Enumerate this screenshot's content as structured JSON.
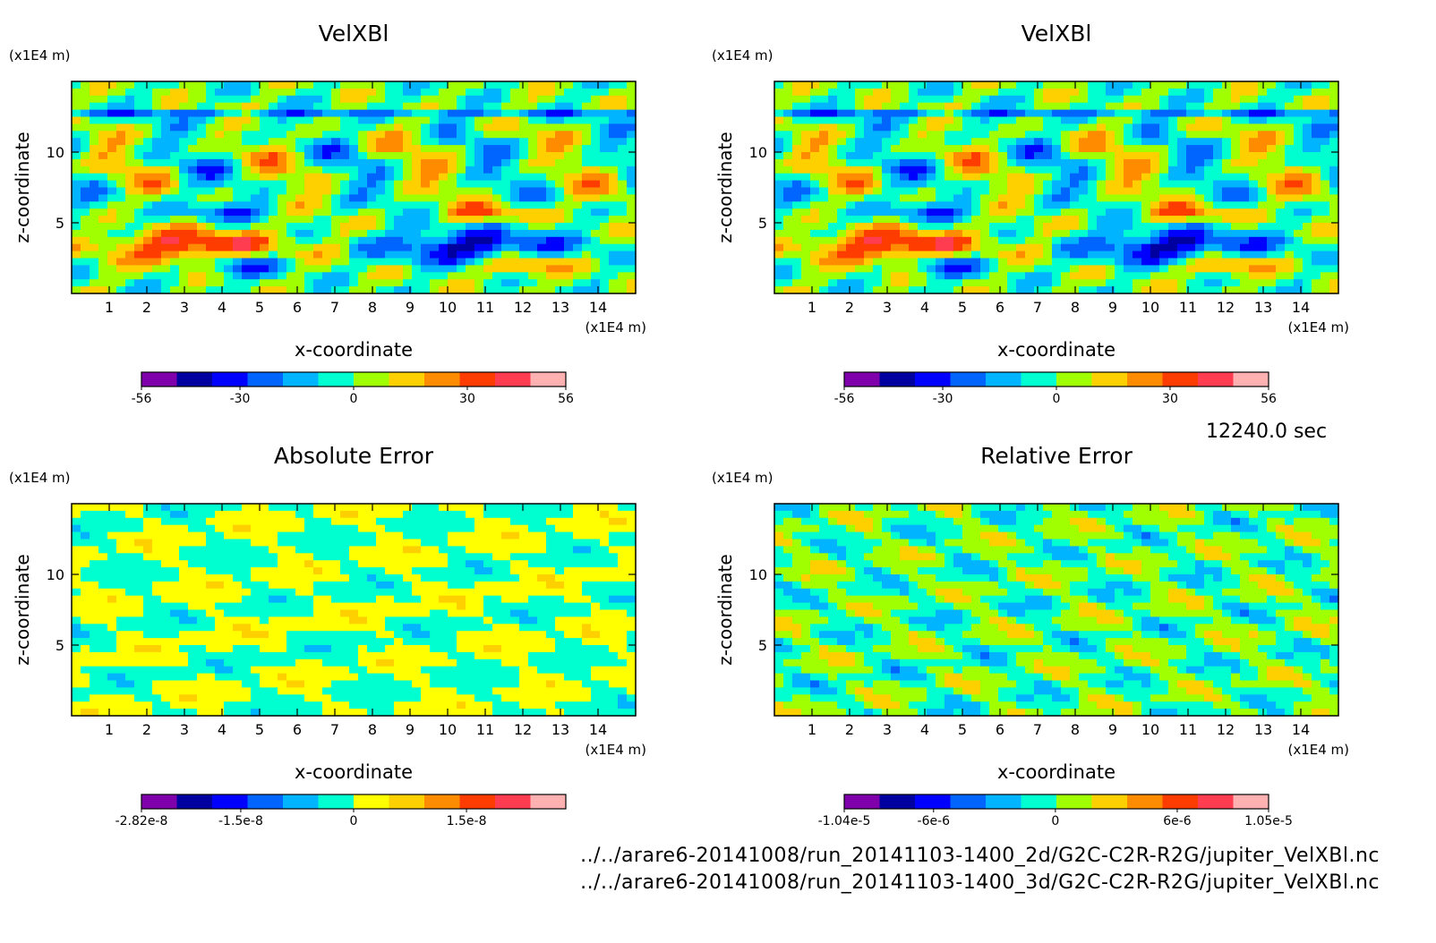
{
  "timestamp": "12240.0 sec",
  "files": [
    "../../arare6-20141008/run_20141103-1400_2d/G2C-C2R-R2G/jupiter_VelXBl.nc",
    "../../arare6-20141008/run_20141103-1400_3d/G2C-C2R-R2G/jupiter_VelXBl.nc"
  ],
  "chart_data": [
    {
      "type": "heatmap",
      "title": "VelXBl",
      "xlabel": "x-coordinate",
      "ylabel": "z-coordinate",
      "x_unit": "(x1E4 m)",
      "y_unit": "(x1E4 m)",
      "xlim": [
        0,
        15
      ],
      "ylim": [
        0,
        15
      ],
      "x_ticks": [
        1,
        2,
        3,
        4,
        5,
        6,
        7,
        8,
        9,
        10,
        11,
        12,
        13,
        14
      ],
      "y_ticks": [
        5,
        10
      ],
      "colorbar": {
        "ticks": [
          "-56",
          "-30",
          "0",
          "30",
          "56"
        ],
        "tick_values": [
          -56,
          -30,
          0,
          30,
          56
        ],
        "range": [
          -56,
          56
        ],
        "colors": [
          "#7f00aa",
          "#0000a0",
          "#0000ff",
          "#0064ff",
          "#00b4ff",
          "#00ffd0",
          "#a0ff00",
          "#ffd000",
          "#ff8c00",
          "#ff3c00",
          "#ff3c50",
          "#ffb0b0"
        ]
      }
    },
    {
      "type": "heatmap",
      "title": "VelXBl",
      "xlabel": "x-coordinate",
      "ylabel": "z-coordinate",
      "x_unit": "(x1E4 m)",
      "y_unit": "(x1E4 m)",
      "xlim": [
        0,
        15
      ],
      "ylim": [
        0,
        15
      ],
      "x_ticks": [
        1,
        2,
        3,
        4,
        5,
        6,
        7,
        8,
        9,
        10,
        11,
        12,
        13,
        14
      ],
      "y_ticks": [
        5,
        10
      ],
      "colorbar": {
        "ticks": [
          "-56",
          "-30",
          "0",
          "30",
          "56"
        ],
        "tick_values": [
          -56,
          -30,
          0,
          30,
          56
        ],
        "range": [
          -56,
          56
        ],
        "colors": [
          "#7f00aa",
          "#0000a0",
          "#0000ff",
          "#0064ff",
          "#00b4ff",
          "#00ffd0",
          "#a0ff00",
          "#ffd000",
          "#ff8c00",
          "#ff3c00",
          "#ff3c50",
          "#ffb0b0"
        ]
      }
    },
    {
      "type": "heatmap",
      "title": "Absolute Error",
      "xlabel": "x-coordinate",
      "ylabel": "z-coordinate",
      "x_unit": "(x1E4 m)",
      "y_unit": "(x1E4 m)",
      "xlim": [
        0,
        15
      ],
      "ylim": [
        0,
        15
      ],
      "x_ticks": [
        1,
        2,
        3,
        4,
        5,
        6,
        7,
        8,
        9,
        10,
        11,
        12,
        13,
        14
      ],
      "y_ticks": [
        5,
        10
      ],
      "colorbar": {
        "ticks": [
          "-2.82e-8",
          "-1.5e-8",
          "0",
          "1.5e-8"
        ],
        "tick_values": [
          -2.82e-08,
          -1.5e-08,
          0,
          1.5e-08
        ],
        "range": [
          -2.82e-08,
          2.82e-08
        ],
        "colors": [
          "#7f00aa",
          "#0000a0",
          "#0000ff",
          "#0064ff",
          "#00b4ff",
          "#00ffd0",
          "#ffff00",
          "#ffd000",
          "#ff8c00",
          "#ff3c00",
          "#ff3c50",
          "#ffb0b0"
        ]
      }
    },
    {
      "type": "heatmap",
      "title": "Relative Error",
      "xlabel": "x-coordinate",
      "ylabel": "z-coordinate",
      "x_unit": "(x1E4 m)",
      "y_unit": "(x1E4 m)",
      "xlim": [
        0,
        15
      ],
      "ylim": [
        0,
        15
      ],
      "x_ticks": [
        1,
        2,
        3,
        4,
        5,
        6,
        7,
        8,
        9,
        10,
        11,
        12,
        13,
        14
      ],
      "y_ticks": [
        5,
        10
      ],
      "colorbar": {
        "ticks": [
          "-1.04e-5",
          "-6e-6",
          "0",
          "6e-6",
          "1.05e-5"
        ],
        "tick_values": [
          -1.04e-05,
          -6e-06,
          0,
          6e-06,
          1.05e-05
        ],
        "range": [
          -1.04e-05,
          1.05e-05
        ],
        "colors": [
          "#7f00aa",
          "#0000a0",
          "#0000ff",
          "#0064ff",
          "#00b4ff",
          "#00ffd0",
          "#a0ff00",
          "#ffd000",
          "#ff8c00",
          "#ff3c00",
          "#ff3c50",
          "#ffb0b0"
        ]
      }
    }
  ]
}
